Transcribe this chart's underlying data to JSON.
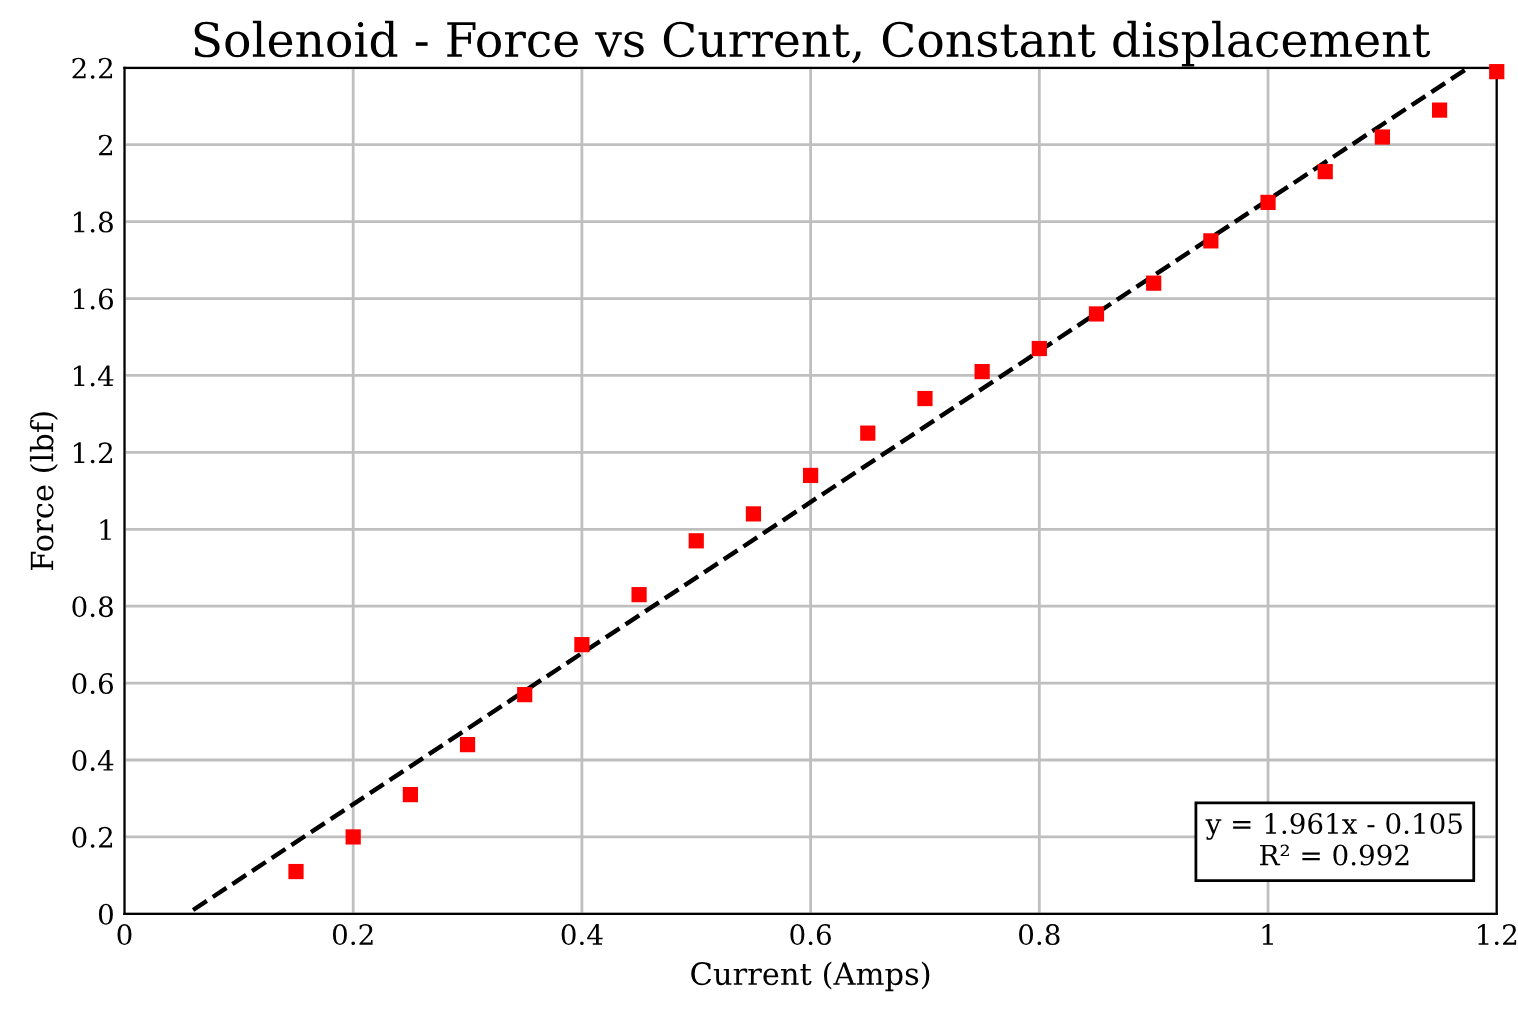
{
  "chart_data": {
    "type": "scatter",
    "title": "Solenoid - Force vs Current, Constant displacement",
    "xlabel": "Current (Amps)",
    "ylabel": "Force (lbf)",
    "xlim": [
      0,
      1.2
    ],
    "ylim": [
      0,
      2.2
    ],
    "xticks": [
      0,
      0.2,
      0.4,
      0.6,
      0.8,
      1,
      1.2
    ],
    "yticks": [
      0,
      0.2,
      0.4,
      0.6,
      0.8,
      1,
      1.2,
      1.4,
      1.6,
      1.8,
      2,
      2.2
    ],
    "grid": true,
    "legend": false,
    "series": [
      {
        "color": "#ff0000",
        "marker": "square",
        "x": [
          0.15,
          0.2,
          0.25,
          0.3,
          0.35,
          0.4,
          0.45,
          0.5,
          0.55,
          0.6,
          0.65,
          0.7,
          0.75,
          0.8,
          0.85,
          0.9,
          0.95,
          1,
          1.05,
          1.1,
          1.15,
          1.2
        ],
        "values": [
          0.11,
          0.2,
          0.31,
          0.44,
          0.57,
          0.7,
          0.83,
          0.97,
          1.04,
          1.14,
          1.25,
          1.34,
          1.41,
          1.47,
          1.56,
          1.64,
          1.75,
          1.85,
          1.93,
          2.02,
          2.09,
          2.19
        ]
      },
      {
        "type": "line",
        "color": "#000000",
        "line_style": "dashed",
        "marker": "none",
        "x": [
          0.06,
          1.175
        ],
        "values": [
          0.01,
          2.2
        ]
      }
    ],
    "annotations": [
      "y = 1.961x - 0.105",
      "R² = 0.992"
    ]
  }
}
